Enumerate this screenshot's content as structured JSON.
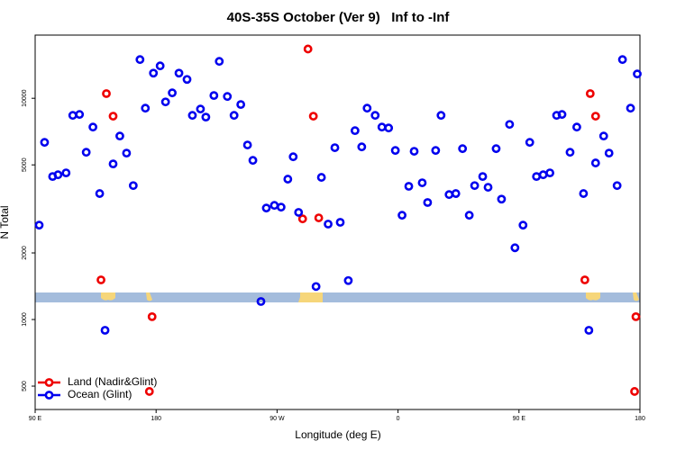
{
  "chart_data": {
    "type": "scatter",
    "title": "40S-35S October (Ver 9)   Inf to -Inf",
    "x_label": "Longitude (deg E)",
    "y_label": "N Total",
    "xlim": [
      90,
      540
    ],
    "xticks": [
      {
        "value": 90,
        "label": "90 E"
      },
      180,
      {
        "value": 270,
        "label": "90 W"
      },
      {
        "value": 360,
        "label": "0"
      },
      {
        "value": 450,
        "label": "90 E"
      },
      {
        "value": 540,
        "label": "180"
      }
    ],
    "ylim": [
      392,
      19300
    ],
    "y_log": true,
    "yticks": [
      500,
      1000,
      2000,
      5000,
      10000
    ],
    "legend": "lower left",
    "series": [
      {
        "name": "Land (Nadir&Glint)",
        "color": "#ee0000",
        "x": [
          143,
          148,
          139,
          177,
          175,
          293,
          297,
          289,
          301,
          503,
          507,
          499,
          537,
          536
        ],
        "values": [
          10500,
          8300,
          1510,
          1030,
          473,
          16700,
          8300,
          2850,
          2880,
          10500,
          8300,
          1510,
          1030,
          473
        ]
      },
      {
        "name": "Ocean (Glint)",
        "color": "#0000ee",
        "x": [
          93,
          97,
          103,
          107,
          113,
          118,
          123,
          128,
          133,
          138,
          142,
          148,
          153,
          158,
          163,
          168,
          172,
          178,
          183,
          187,
          192,
          197,
          203,
          207,
          213,
          217,
          223,
          227,
          233,
          238,
          243,
          248,
          252,
          258,
          262,
          268,
          273,
          278,
          282,
          286,
          299,
          303,
          308,
          313,
          317,
          323,
          328,
          333,
          337,
          343,
          348,
          353,
          358,
          363,
          368,
          372,
          378,
          382,
          388,
          392,
          398,
          403,
          408,
          413,
          417,
          423,
          427,
          433,
          437,
          443,
          447,
          453,
          458,
          463,
          468,
          473,
          478,
          482,
          488,
          493,
          498,
          502,
          507,
          513,
          517,
          523,
          527,
          533,
          538
        ],
        "values": [
          2670,
          6320,
          4430,
          4510,
          4600,
          8370,
          8450,
          5700,
          7410,
          3710,
          894,
          5050,
          6750,
          5650,
          4030,
          14960,
          9020,
          12990,
          14010,
          9630,
          10580,
          12990,
          12170,
          8370,
          8940,
          8220,
          10290,
          14680,
          10190,
          8370,
          9370,
          6150,
          5240,
          1206,
          3190,
          3280,
          3220,
          4310,
          5440,
          3050,
          1410,
          4390,
          2700,
          5980,
          2750,
          1500,
          7140,
          6030,
          9020,
          8370,
          7410,
          7340,
          5810,
          2960,
          4000,
          5760,
          4150,
          3380,
          5810,
          8370,
          3670,
          3710,
          5920,
          2960,
          4030,
          4430,
          3960,
          5920,
          3500,
          7620,
          2110,
          2670,
          6320,
          4430,
          4510,
          4600,
          8370,
          8450,
          5700,
          7410,
          3710,
          894,
          5100,
          6750,
          5650,
          4030,
          14960,
          9020,
          12880
        ]
      }
    ]
  }
}
